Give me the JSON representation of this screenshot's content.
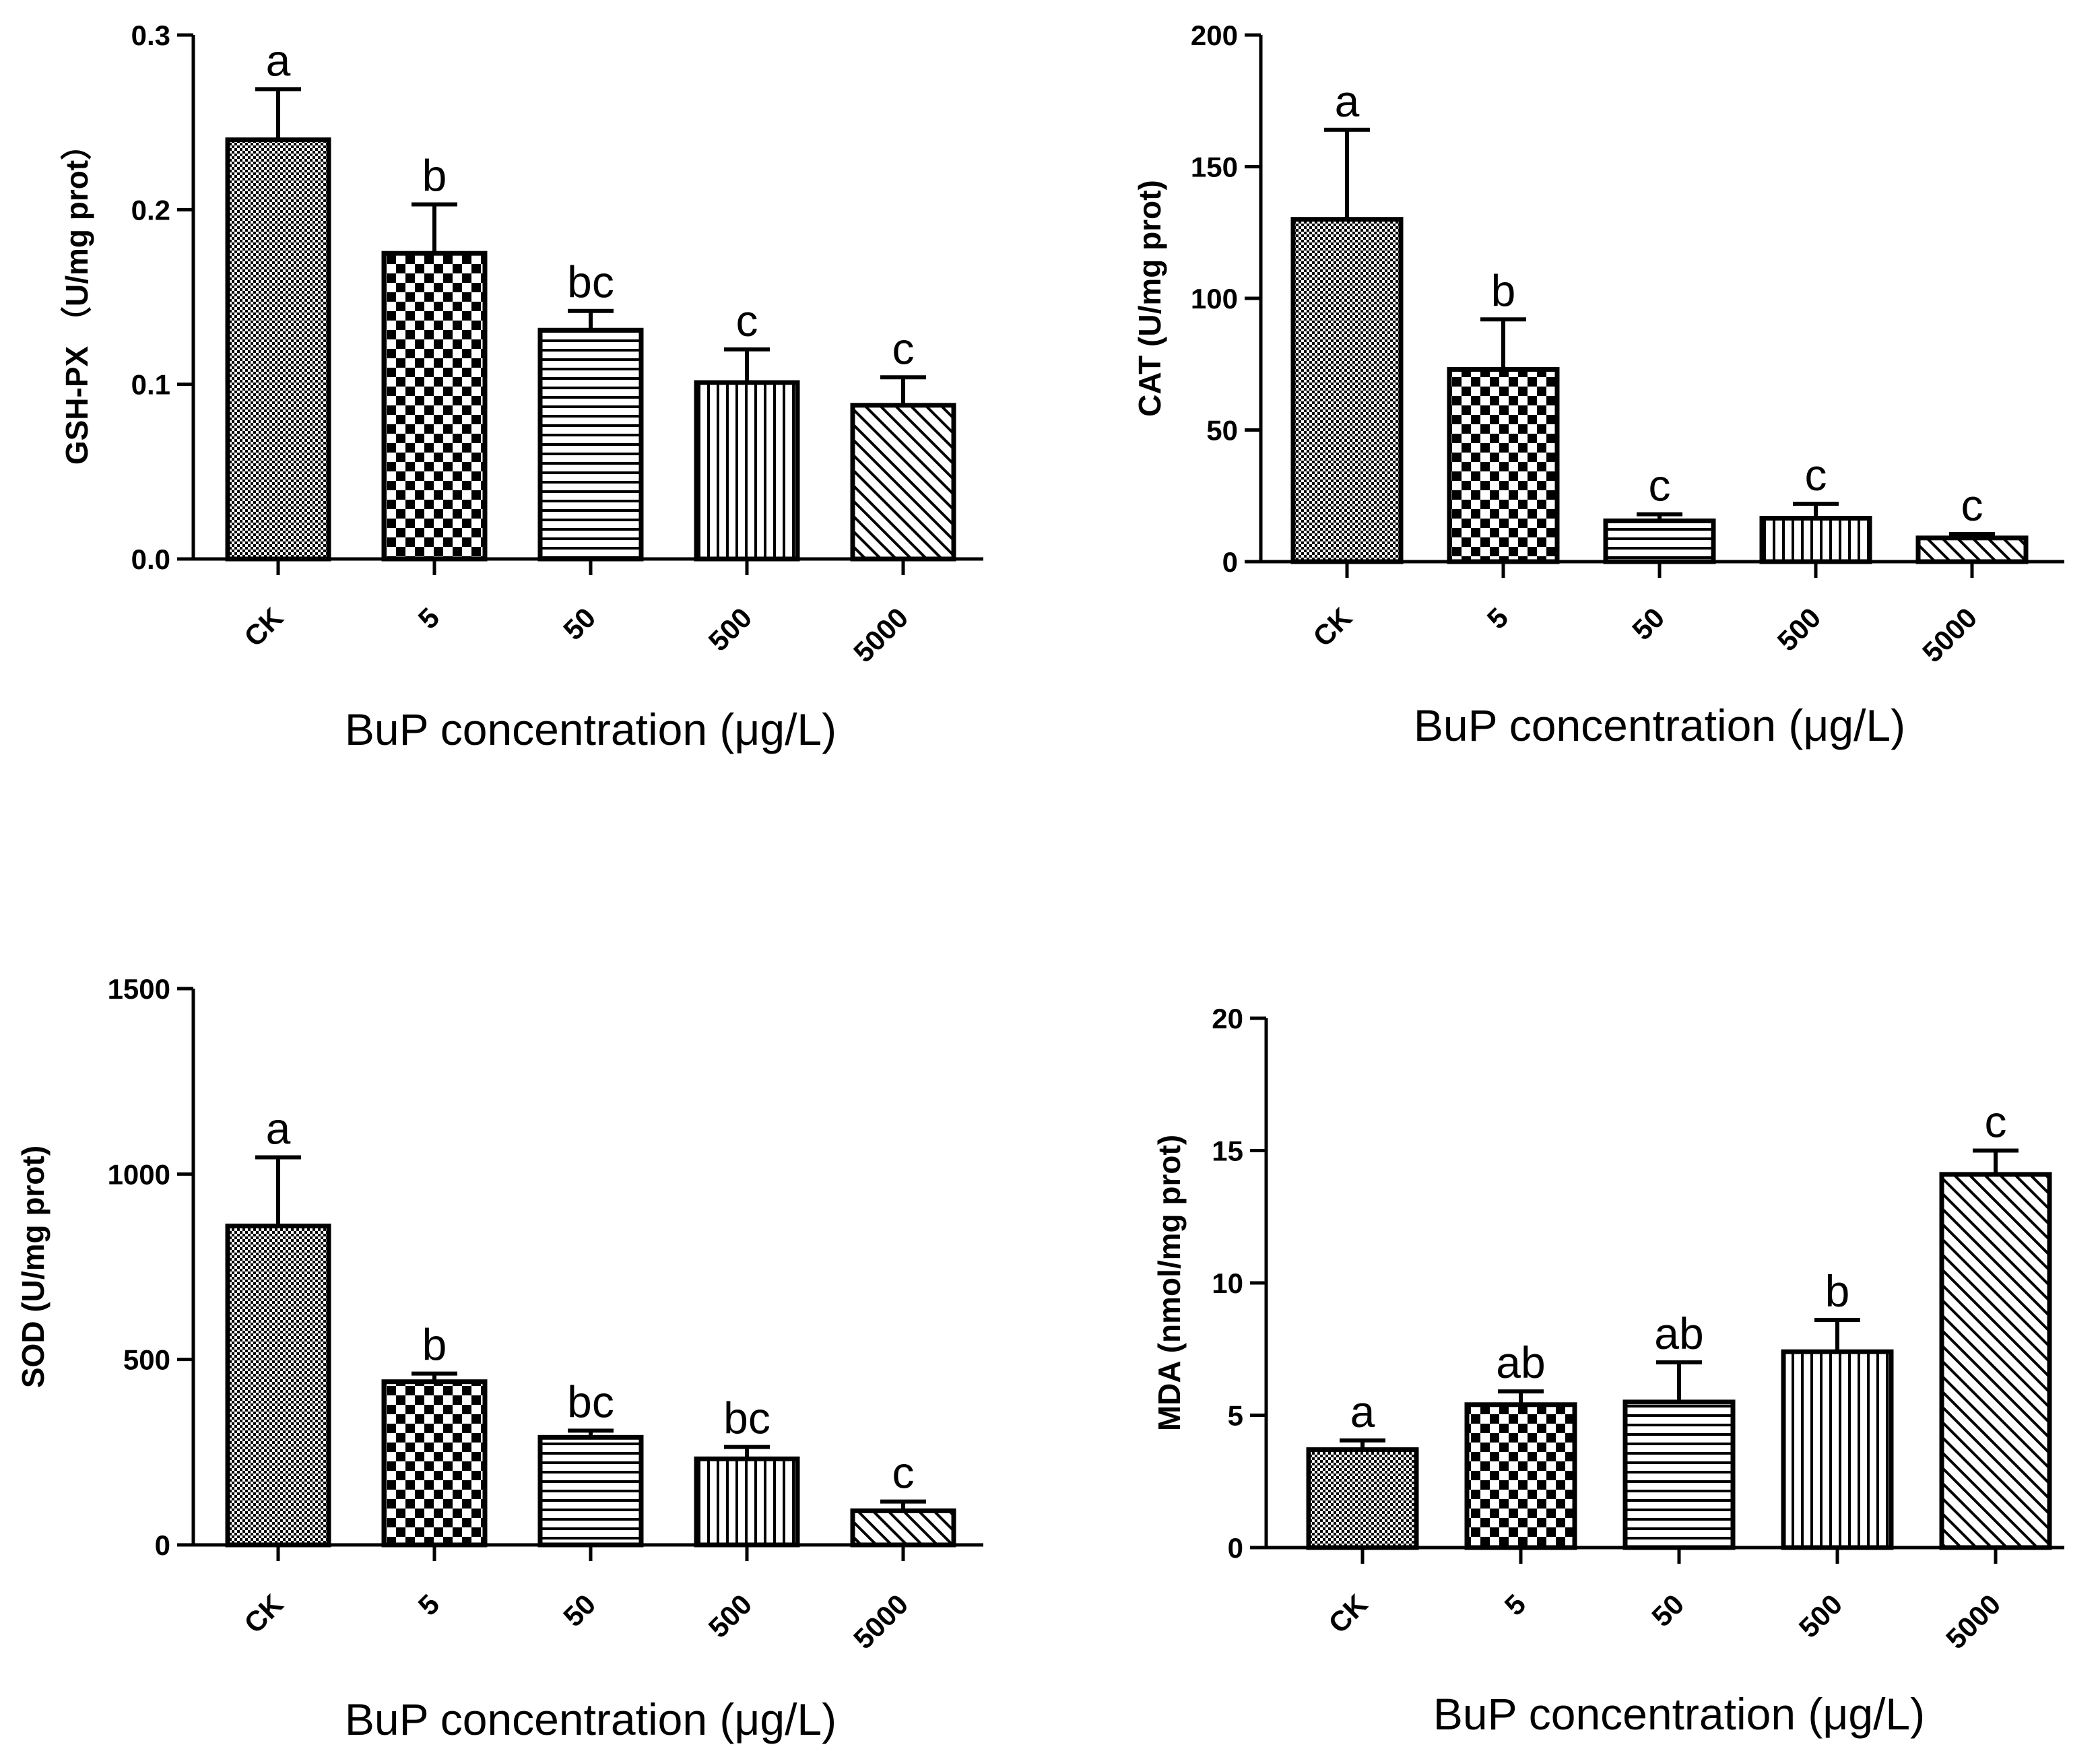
{
  "figure_title": "",
  "chart_data": [
    {
      "id": "gshpx",
      "type": "bar",
      "title": "",
      "xlabel": "BuP concentration (μg/L)",
      "ylabel": "GSH-PX （U/mg prot）",
      "ylim": [
        0,
        0.3
      ],
      "yticks": [
        "0.0",
        "0.1",
        "0.2",
        "0.3"
      ],
      "ytick_values": [
        0,
        0.1,
        0.2,
        0.3
      ],
      "categories": [
        "CK",
        "5",
        "50",
        "500",
        "5000"
      ],
      "values": [
        0.24,
        0.175,
        0.131,
        0.101,
        0.088
      ],
      "errors": [
        0.029,
        0.028,
        0.011,
        0.019,
        0.016
      ],
      "significance": [
        "a",
        "b",
        "bc",
        "c",
        "c"
      ]
    },
    {
      "id": "cat",
      "type": "bar",
      "title": "",
      "xlabel": "BuP concentration (μg/L)",
      "ylabel": "CAT (U/mg prot)",
      "ylim": [
        0,
        200
      ],
      "yticks": [
        "0",
        "50",
        "100",
        "150",
        "200"
      ],
      "ytick_values": [
        0,
        50,
        100,
        150,
        200
      ],
      "categories": [
        "CK",
        "5",
        "50",
        "500",
        "5000"
      ],
      "values": [
        130,
        73,
        15.5,
        16.5,
        9
      ],
      "errors": [
        34,
        19,
        2.5,
        5.5,
        1.5
      ],
      "significance": [
        "a",
        "b",
        "c",
        "c",
        "c"
      ]
    },
    {
      "id": "sod",
      "type": "bar",
      "title": "",
      "xlabel": "BuP concentration (μg/L)",
      "ylabel": "SOD (U/mg prot)",
      "ylim": [
        0,
        1500
      ],
      "yticks": [
        "0",
        "500",
        "1000",
        "1500"
      ],
      "ytick_values": [
        0,
        500,
        1000,
        1500
      ],
      "categories": [
        "CK",
        "5",
        "50",
        "500",
        "5000"
      ],
      "values": [
        860,
        440,
        290,
        232,
        92
      ],
      "errors": [
        185,
        22,
        18,
        32,
        25
      ],
      "significance": [
        "a",
        "b",
        "bc",
        "bc",
        "c"
      ]
    },
    {
      "id": "mda",
      "type": "bar",
      "title": "",
      "xlabel": "BuP concentration (μg/L)",
      "ylabel": "MDA (nmol/mg prot)",
      "ylim": [
        0,
        20
      ],
      "yticks": [
        "0",
        "5",
        "10",
        "15",
        "20"
      ],
      "ytick_values": [
        0,
        5,
        10,
        15,
        20
      ],
      "categories": [
        "CK",
        "5",
        "50",
        "500",
        "5000"
      ],
      "values": [
        3.7,
        5.4,
        5.5,
        7.4,
        14.1
      ],
      "errors": [
        0.35,
        0.5,
        1.5,
        1.2,
        0.9
      ],
      "significance": [
        "a",
        "ab",
        "ab",
        "b",
        "c"
      ]
    }
  ],
  "patterns": [
    "fine-dots",
    "checkerboard",
    "horizontal-lines",
    "vertical-lines",
    "diagonal-hatch"
  ],
  "colors": {
    "ink": "#000000",
    "paper": "#ffffff"
  }
}
